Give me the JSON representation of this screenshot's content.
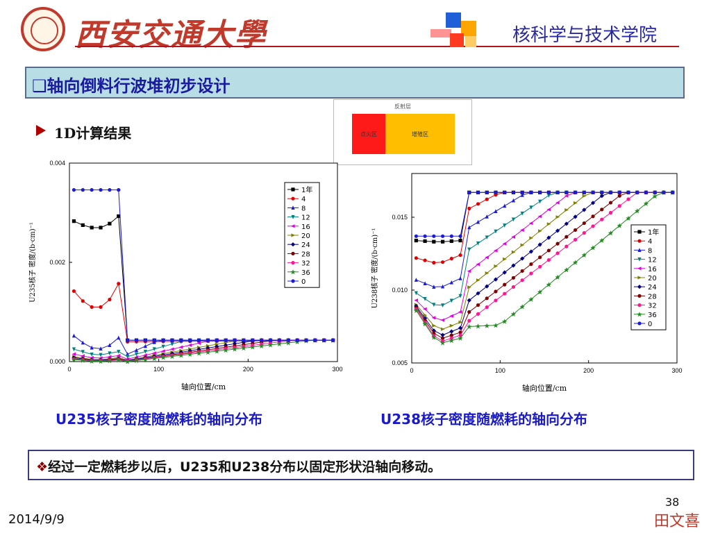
{
  "header": {
    "university": "西安交通大學",
    "school": "核科学与技术学院"
  },
  "slide_title": "轴向倒料行波堆初步设计",
  "sub_heading": "1D计算结果",
  "diagram": {
    "reflector_label": "反射层",
    "zone1_label": "点火区",
    "zone2_label": "增殖区",
    "zone1_color": "#ff1a1a",
    "zone2_color": "#ffbf00"
  },
  "captions": {
    "left": "U235核子密度随燃耗的轴向分布",
    "right": "U238核子密度随燃耗的轴向分布"
  },
  "note": {
    "bullet": "❖",
    "text": "经过一定燃耗步以后，U235和U238分布以固定形状沿轴向移动。"
  },
  "footer": {
    "page": "38",
    "author": "田文喜",
    "date": "2014/9/9"
  },
  "chart_data": [
    {
      "type": "line",
      "xlabel": "轴向位置/cm",
      "ylabel": "U235核子 密度/(b·cm)⁻¹",
      "xlim": [
        0,
        300
      ],
      "ylim": [
        0,
        0.004
      ],
      "xticks": [
        0,
        100,
        200,
        300
      ],
      "yticks": [
        "0.000",
        "0.002",
        "0.004"
      ],
      "legend_position": "right",
      "series": [
        {
          "name": "1年",
          "color": "#000000",
          "marker": "square",
          "x": [
            5,
            15,
            25,
            35,
            45,
            55,
            65,
            300
          ],
          "y": [
            0.00283,
            0.00275,
            0.0027,
            0.0027,
            0.00278,
            0.00293,
            0.00043,
            0.00043
          ]
        },
        {
          "name": "4",
          "color": "#e00000",
          "marker": "circle",
          "x": [
            5,
            15,
            25,
            35,
            45,
            55,
            65,
            300
          ],
          "y": [
            0.00142,
            0.00122,
            0.0011,
            0.0011,
            0.00125,
            0.00157,
            0.0004,
            0.00043
          ]
        },
        {
          "name": "8",
          "color": "#1a1ad8",
          "marker": "triangle",
          "x": [
            5,
            15,
            25,
            35,
            45,
            55,
            65,
            100,
            300
          ],
          "y": [
            0.00052,
            0.00038,
            0.00028,
            0.00026,
            0.00033,
            0.00048,
            0.00015,
            0.00043,
            0.00043
          ]
        },
        {
          "name": "12",
          "color": "#008080",
          "marker": "tri-down",
          "x": [
            5,
            30,
            55,
            65,
            130,
            300
          ],
          "y": [
            0.00025,
            0.00012,
            0.0002,
            0.0001,
            0.00043,
            0.00043
          ]
        },
        {
          "name": "16",
          "color": "#e000e0",
          "marker": "tri-left",
          "x": [
            5,
            30,
            55,
            65,
            160,
            300
          ],
          "y": [
            0.00015,
            6e-05,
            0.00012,
            5e-05,
            0.00043,
            0.00043
          ]
        },
        {
          "name": "20",
          "color": "#808000",
          "marker": "tri-right",
          "x": [
            5,
            30,
            55,
            65,
            190,
            300
          ],
          "y": [
            0.0001,
            3e-05,
            8e-05,
            3e-05,
            0.00043,
            0.00043
          ]
        },
        {
          "name": "24",
          "color": "#000080",
          "marker": "diamond",
          "x": [
            5,
            30,
            55,
            65,
            210,
            300
          ],
          "y": [
            8e-05,
            2e-05,
            6e-05,
            2e-05,
            0.00043,
            0.00043
          ]
        },
        {
          "name": "28",
          "color": "#800000",
          "marker": "circle",
          "x": [
            5,
            30,
            55,
            65,
            230,
            300
          ],
          "y": [
            6e-05,
            1e-05,
            5e-05,
            1e-05,
            0.00043,
            0.00043
          ]
        },
        {
          "name": "32",
          "color": "#ff1493",
          "marker": "circle",
          "x": [
            5,
            30,
            55,
            65,
            250,
            300
          ],
          "y": [
            5e-05,
            1e-05,
            4e-05,
            1e-05,
            0.00043,
            0.00043
          ]
        },
        {
          "name": "36",
          "color": "#228b22",
          "marker": "star",
          "x": [
            5,
            30,
            55,
            65,
            270,
            300
          ],
          "y": [
            4e-05,
            0.0,
            3e-05,
            0.0,
            0.00043,
            0.00043
          ]
        },
        {
          "name": "0",
          "color": "#1a1ad8",
          "marker": "circle",
          "x": [
            5,
            15,
            25,
            35,
            45,
            55,
            65,
            300
          ],
          "y": [
            0.00346,
            0.00346,
            0.00346,
            0.00346,
            0.00346,
            0.00346,
            0.00043,
            0.00043
          ]
        }
      ]
    },
    {
      "type": "line",
      "xlabel": "轴向位置/cm",
      "ylabel": "U238核子 密度/(b·cm)⁻¹",
      "xlim": [
        0,
        300
      ],
      "ylim": [
        0.005,
        0.018
      ],
      "xticks": [
        0,
        100,
        200,
        300
      ],
      "yticks": [
        "0.005",
        "0.010",
        "0.015"
      ],
      "legend_position": "right",
      "series": [
        {
          "name": "1年",
          "color": "#000000",
          "marker": "square",
          "x": [
            5,
            30,
            55,
            65,
            300
          ],
          "y": [
            0.0134,
            0.0133,
            0.0134,
            0.0167,
            0.0167
          ]
        },
        {
          "name": "4",
          "color": "#e00000",
          "marker": "circle",
          "x": [
            5,
            30,
            55,
            65,
            100,
            300
          ],
          "y": [
            0.0122,
            0.0118,
            0.0124,
            0.0156,
            0.0167,
            0.0167
          ]
        },
        {
          "name": "8",
          "color": "#1a1ad8",
          "marker": "triangle",
          "x": [
            5,
            30,
            55,
            65,
            130,
            300
          ],
          "y": [
            0.0107,
            0.0101,
            0.0108,
            0.0143,
            0.0167,
            0.0167
          ]
        },
        {
          "name": "12",
          "color": "#008080",
          "marker": "tri-down",
          "x": [
            5,
            30,
            55,
            65,
            160,
            300
          ],
          "y": [
            0.0098,
            0.0088,
            0.0096,
            0.0128,
            0.0167,
            0.0167
          ]
        },
        {
          "name": "16",
          "color": "#e000e0",
          "marker": "tri-left",
          "x": [
            5,
            30,
            55,
            65,
            180,
            300
          ],
          "y": [
            0.0093,
            0.0078,
            0.0085,
            0.0113,
            0.0167,
            0.0167
          ]
        },
        {
          "name": "20",
          "color": "#808000",
          "marker": "tri-right",
          "x": [
            5,
            30,
            55,
            65,
            200,
            300
          ],
          "y": [
            0.009,
            0.0072,
            0.0078,
            0.0102,
            0.0167,
            0.0167
          ]
        },
        {
          "name": "24",
          "color": "#000080",
          "marker": "diamond",
          "x": [
            5,
            30,
            55,
            65,
            220,
            300
          ],
          "y": [
            0.0089,
            0.0068,
            0.0074,
            0.0093,
            0.0167,
            0.0167
          ]
        },
        {
          "name": "28",
          "color": "#800000",
          "marker": "circle",
          "x": [
            5,
            30,
            55,
            65,
            240,
            300
          ],
          "y": [
            0.0088,
            0.0066,
            0.0071,
            0.0085,
            0.0167,
            0.0167
          ]
        },
        {
          "name": "32",
          "color": "#ff1493",
          "marker": "circle",
          "x": [
            5,
            30,
            55,
            65,
            255,
            300
          ],
          "y": [
            0.0087,
            0.0064,
            0.0069,
            0.0079,
            0.0167,
            0.0167
          ]
        },
        {
          "name": "36",
          "color": "#228b22",
          "marker": "star",
          "x": [
            5,
            30,
            55,
            65,
            100,
            280,
            300
          ],
          "y": [
            0.0086,
            0.0063,
            0.0067,
            0.0075,
            0.0076,
            0.0167,
            0.0167
          ]
        },
        {
          "name": "0",
          "color": "#1a1ad8",
          "marker": "circle",
          "x": [
            5,
            15,
            25,
            35,
            45,
            55,
            65,
            300
          ],
          "y": [
            0.0137,
            0.0137,
            0.0137,
            0.0137,
            0.0137,
            0.0137,
            0.0167,
            0.0167
          ]
        }
      ]
    }
  ]
}
